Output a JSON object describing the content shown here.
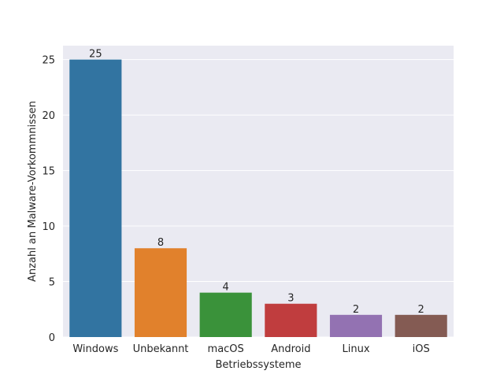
{
  "chart_data": {
    "type": "bar",
    "categories": [
      "Windows",
      "Unbekannt",
      "macOS",
      "Android",
      "Linux",
      "iOS"
    ],
    "values": [
      25,
      8,
      4,
      3,
      2,
      2
    ],
    "colors": [
      "#3274a1",
      "#e1812c",
      "#3a923a",
      "#c03d3e",
      "#9372b2",
      "#845b53"
    ],
    "xlabel": "Betriebssysteme",
    "ylabel": "Anzahl an Malware-Vorkommnissen",
    "ylim": [
      0,
      26.25
    ],
    "yticks": [
      0,
      5,
      10,
      15,
      20,
      25
    ],
    "grid": true,
    "background": "#eaeaf2",
    "grid_color": "#ffffff"
  }
}
